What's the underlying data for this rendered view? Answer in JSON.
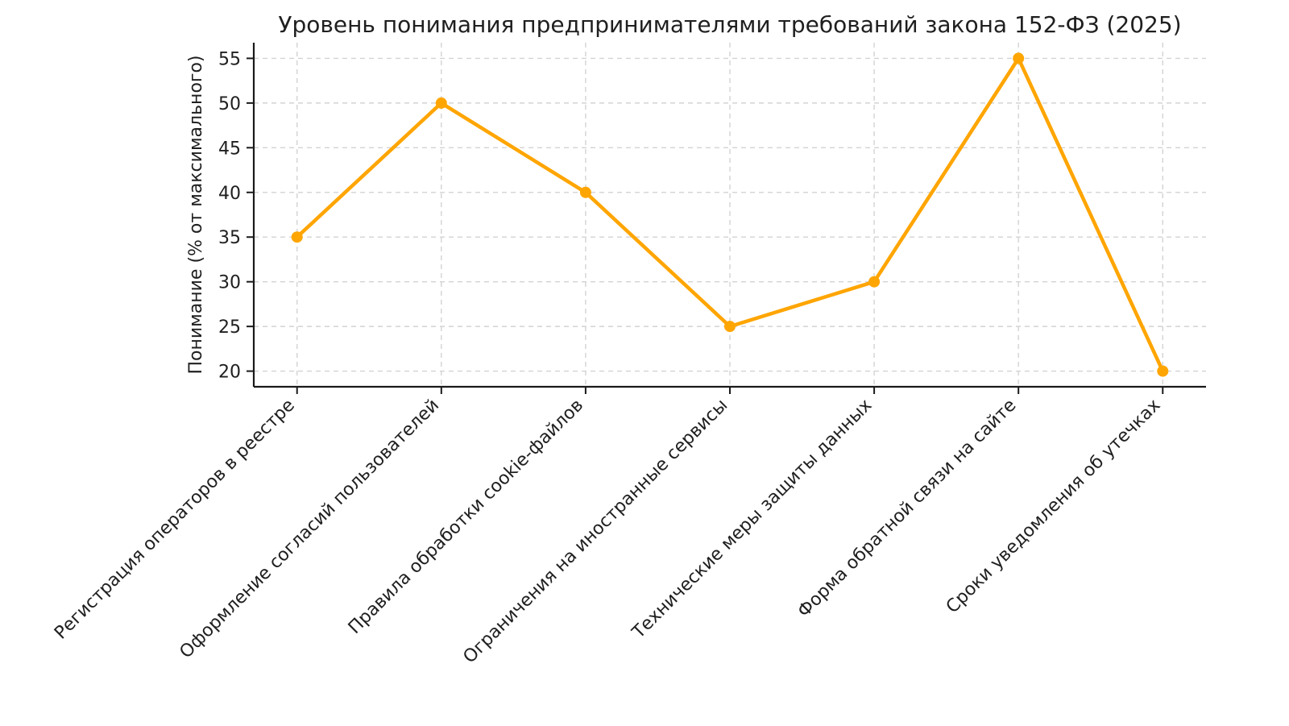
{
  "chart_data": {
    "type": "line",
    "title": "Уровень понимания предпринимателями требований закона 152-ФЗ (2025)",
    "xlabel": "",
    "ylabel": "Понимание (% от максимального)",
    "categories": [
      "Регистрация операторов в реестре",
      "Оформление согласий пользователей",
      "Правила обработки cookie-файлов",
      "Ограничения на иностранные сервисы",
      "Технические меры защиты данных",
      "Форма обратной связи на сайте",
      "Сроки уведомления об утечках"
    ],
    "values": [
      35,
      50,
      40,
      25,
      30,
      55,
      20
    ],
    "yticks": [
      20,
      25,
      30,
      35,
      40,
      45,
      50,
      55
    ],
    "ylim": [
      18.25,
      56.75
    ],
    "xlim": [
      -0.3,
      6.3
    ],
    "grid": true,
    "grid_style": "dashed",
    "legend_position": "none",
    "x_tick_rotation_deg": 45,
    "marker": "circle"
  },
  "colors": {
    "line": "#FFA500",
    "marker": "#FFA500",
    "grid": "#d3d3d3",
    "spine": "#1a1a1a",
    "tick": "#1a1a1a",
    "text": "#1f1f1f",
    "background": "#ffffff"
  }
}
